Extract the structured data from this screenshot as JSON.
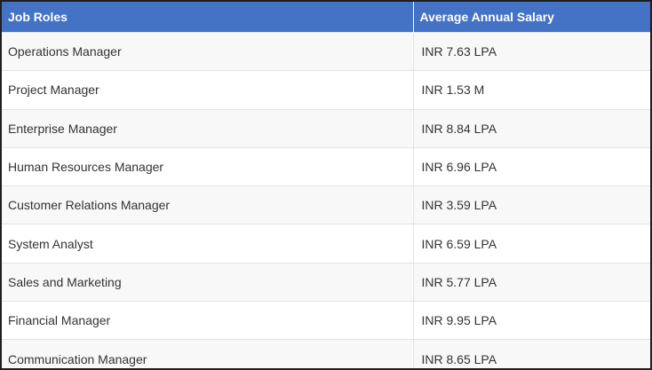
{
  "table": {
    "headers": [
      "Job Roles",
      "Average Annual Salary"
    ],
    "rows": [
      [
        "Operations Manager",
        "INR 7.63 LPA"
      ],
      [
        "Project Manager",
        "INR 1.53 M"
      ],
      [
        "Enterprise Manager",
        "INR 8.84 LPA"
      ],
      [
        "Human Resources Manager",
        "INR 6.96 LPA"
      ],
      [
        "Customer Relations Manager",
        "INR 3.59 LPA"
      ],
      [
        "System Analyst",
        "INR 6.59 LPA"
      ],
      [
        "Sales and Marketing",
        "INR 5.77 LPA"
      ],
      [
        "Financial Manager",
        "INR 9.95 LPA"
      ],
      [
        "Communication Manager",
        "INR 8.65 LPA"
      ]
    ]
  },
  "colors": {
    "header_background": "#4472c4",
    "header_text": "#ffffff",
    "row_stripe": "#f8f8f8",
    "frame_border": "#1f1f1f"
  }
}
